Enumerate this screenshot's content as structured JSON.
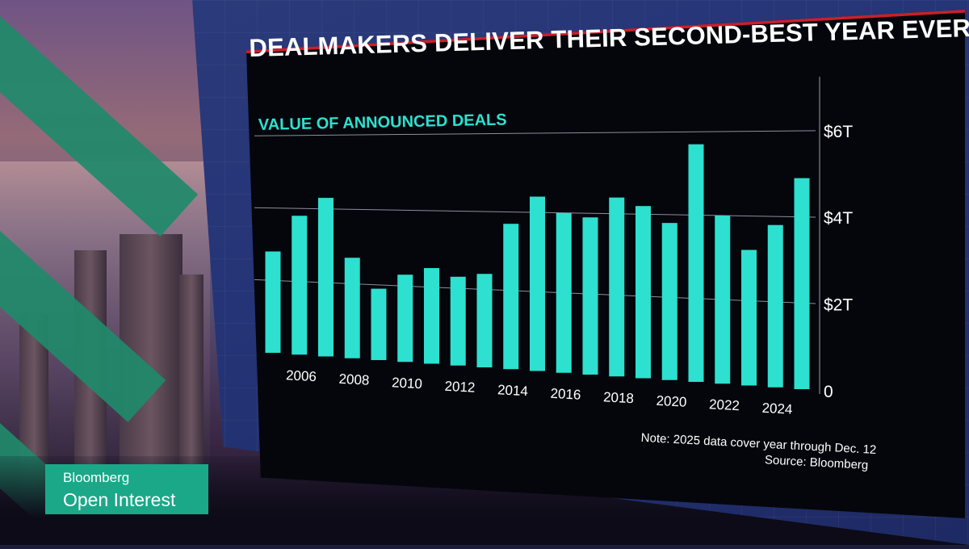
{
  "broadcast": {
    "brand": "Bloomberg",
    "show": "Open Interest"
  },
  "colors": {
    "bar": "#2de0cf",
    "subtitle": "#2de0cf",
    "accent_line": "#c8202c",
    "lower_third": "#1aa889"
  },
  "chart_data": {
    "type": "bar",
    "title": "DEALMAKERS DELIVER THEIR SECOND-BEST YEAR EVER",
    "subtitle": "VALUE OF ANNOUNCED DEALS",
    "categories": [
      "2005",
      "2006",
      "2007",
      "2008",
      "2009",
      "2010",
      "2011",
      "2012",
      "2013",
      "2014",
      "2015",
      "2016",
      "2017",
      "2018",
      "2019",
      "2020",
      "2021",
      "2022",
      "2023",
      "2024",
      "2025"
    ],
    "x_tick_labels": [
      "2006",
      "2008",
      "2010",
      "2012",
      "2014",
      "2016",
      "2018",
      "2020",
      "2022",
      "2024"
    ],
    "series": [
      {
        "values": [
          2.8,
          3.8,
          4.3,
          2.7,
          1.9,
          2.3,
          2.5,
          2.3,
          2.4,
          3.7,
          4.4,
          4.0,
          3.9,
          4.4,
          4.2,
          3.8,
          5.7,
          4.0,
          3.2,
          3.8,
          4.9
        ]
      }
    ],
    "y_ticks": [
      "0",
      "$2T",
      "$4T",
      "$6T"
    ],
    "y_tick_values": [
      0,
      2,
      4,
      6
    ],
    "ylim": [
      0,
      6.2
    ],
    "grid": true,
    "note": "Note: 2025 data cover year through Dec. 12",
    "source": "Source: Bloomberg"
  }
}
